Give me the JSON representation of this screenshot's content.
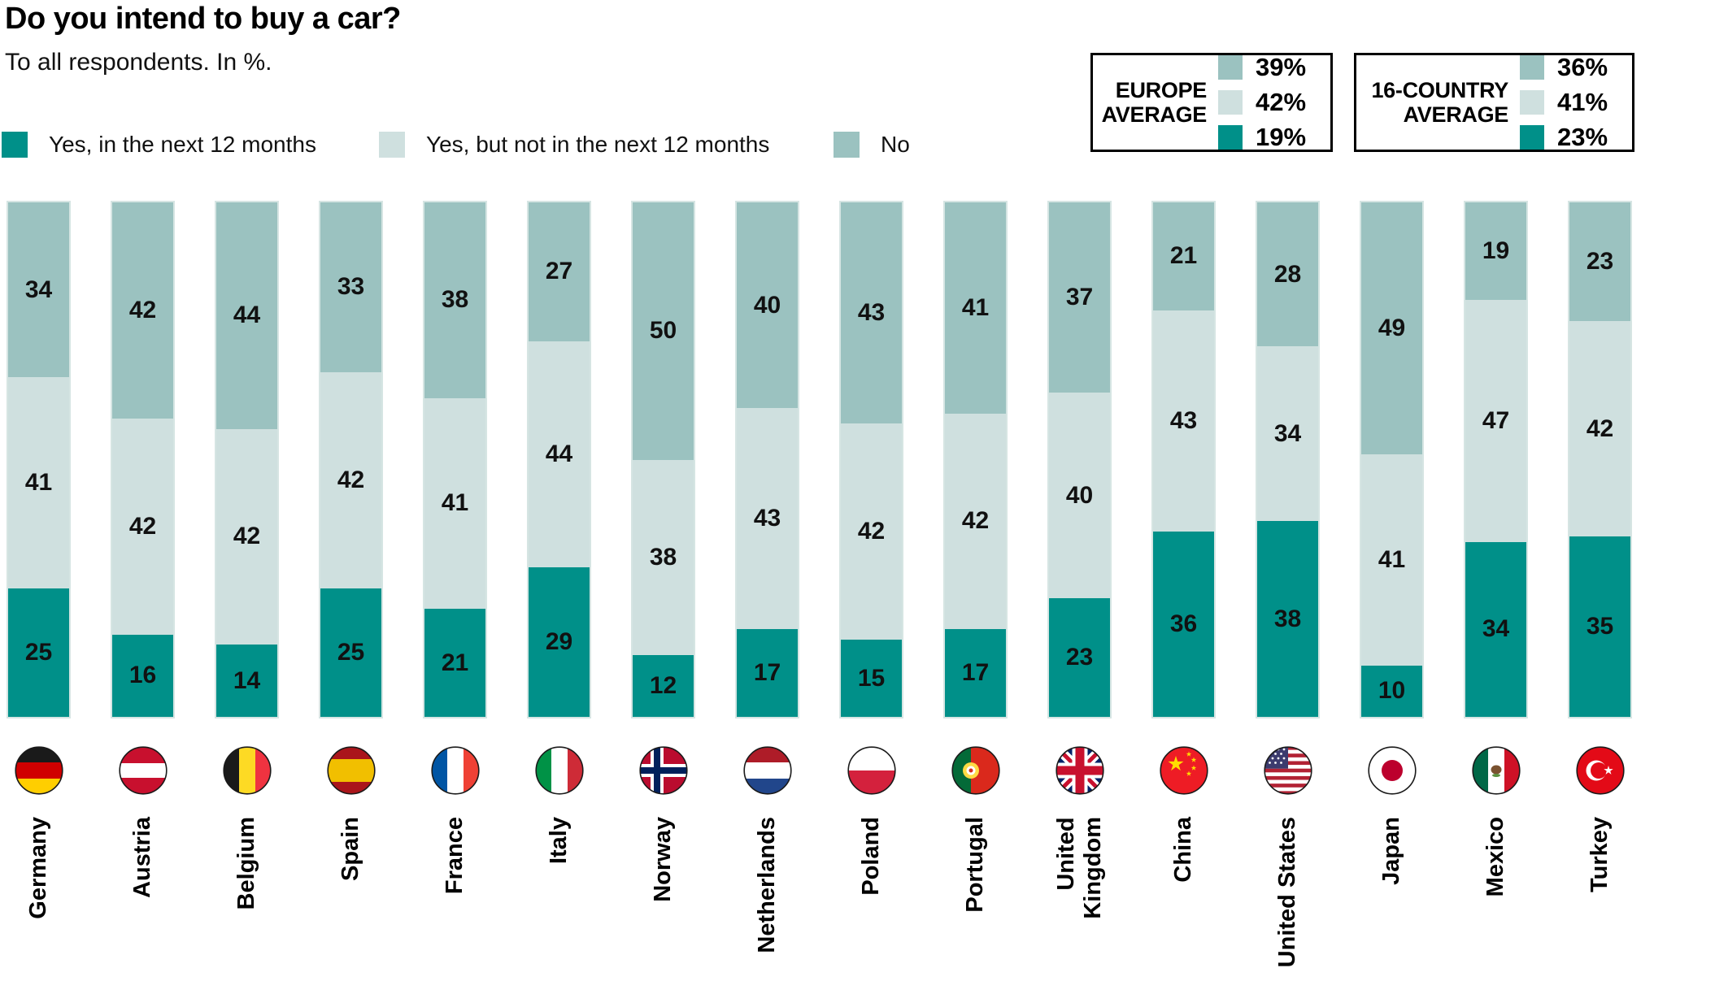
{
  "title": "Do you intend to buy a car?",
  "subtitle": "To all respondents. In %.",
  "average_boxes": [
    {
      "label": "EUROPE\nAVERAGE",
      "rows": [
        {
          "series": "No",
          "value": "39%"
        },
        {
          "series": "Yes, but not in the next 12 months",
          "value": "42%"
        },
        {
          "series": "Yes, in the next 12 months",
          "value": "19%"
        }
      ]
    },
    {
      "label": "16-COUNTRY\nAVERAGE",
      "rows": [
        {
          "series": "No",
          "value": "36%"
        },
        {
          "series": "Yes, but not in the next 12 months",
          "value": "41%"
        },
        {
          "series": "Yes, in the next 12 months",
          "value": "23%"
        }
      ]
    }
  ],
  "chart_data": {
    "type": "bar",
    "stacked": true,
    "orientation": "vertical",
    "unit": "%",
    "ylim": [
      0,
      100
    ],
    "title": "Do you intend to buy a car?",
    "legend_position": "top-left",
    "stack_order_top_to_bottom": [
      "No",
      "Yes, but not in the next 12 months",
      "Yes, in the next 12 months"
    ],
    "categories": [
      "Germany",
      "Austria",
      "Belgium",
      "Spain",
      "France",
      "Italy",
      "Norway",
      "Netherlands",
      "Poland",
      "Portugal",
      "United\nKingdom",
      "China",
      "United States",
      "Japan",
      "Mexico",
      "Turkey"
    ],
    "flags": [
      "germany-flag-icon",
      "austria-flag-icon",
      "belgium-flag-icon",
      "spain-flag-icon",
      "france-flag-icon",
      "italy-flag-icon",
      "norway-flag-icon",
      "netherlands-flag-icon",
      "poland-flag-icon",
      "portugal-flag-icon",
      "uk-flag-icon",
      "china-flag-icon",
      "us-flag-icon",
      "japan-flag-icon",
      "mexico-flag-icon",
      "turkey-flag-icon"
    ],
    "series": [
      {
        "name": "Yes, in the next 12 months",
        "color": "#009089",
        "values": [
          25,
          16,
          14,
          25,
          21,
          29,
          12,
          17,
          15,
          17,
          23,
          36,
          38,
          10,
          34,
          35
        ]
      },
      {
        "name": "Yes, but not in the next 12 months",
        "color": "#CFE0DF",
        "values": [
          41,
          42,
          42,
          42,
          41,
          44,
          38,
          43,
          42,
          42,
          40,
          43,
          34,
          41,
          47,
          42
        ]
      },
      {
        "name": "No",
        "color": "#9BC2C0",
        "values": [
          34,
          42,
          44,
          33,
          38,
          27,
          50,
          40,
          43,
          41,
          37,
          21,
          28,
          49,
          19,
          23
        ]
      }
    ]
  }
}
